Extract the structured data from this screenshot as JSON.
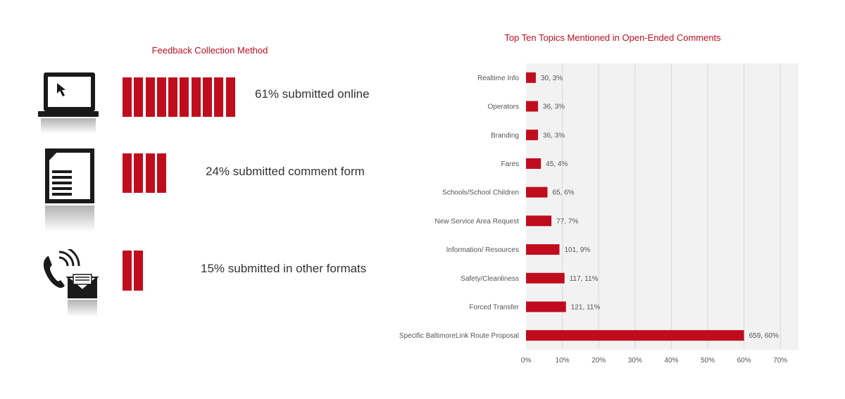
{
  "left_panel": {
    "title": "Feedback Collection Method",
    "rows": [
      {
        "icon": "laptop-icon",
        "percent": 61,
        "bar_count": 10,
        "label": "61% submitted online"
      },
      {
        "icon": "document-icon",
        "percent": 24,
        "bar_count": 4,
        "label": "24% submitted comment form"
      },
      {
        "icon": "phone-mail-icon",
        "percent": 15,
        "bar_count": 2,
        "label": "15% submitted in other formats"
      }
    ]
  },
  "chart_data": {
    "type": "bar",
    "orientation": "horizontal",
    "title": "Top Ten Topics Mentioned in Open-Ended Comments",
    "categories": [
      "Realtime Info",
      "Operators",
      "Branding",
      "Fares",
      "Schools/School Children",
      "New Service Area Request",
      "Information/ Resources",
      "Safety/Cleanliness",
      "Forced Transfer",
      "Specific BaltimoreLink Route Proposal"
    ],
    "counts": [
      30,
      36,
      36,
      45,
      65,
      77,
      101,
      117,
      121,
      659
    ],
    "values": [
      0.027,
      0.033,
      0.033,
      0.041,
      0.059,
      0.07,
      0.092,
      0.106,
      0.11,
      0.6
    ],
    "data_labels": [
      "30, 3%",
      "36, 3%",
      "36, 3%",
      "45, 4%",
      "65, 6%",
      "77, 7%",
      "101, 9%",
      "117, 11%",
      "121, 11%",
      "659, 60%"
    ],
    "x_ticks": [
      "0%",
      "10%",
      "20%",
      "30%",
      "40%",
      "50%",
      "60%",
      "70%"
    ],
    "xlim": [
      0,
      0.75
    ],
    "grid": true,
    "colors": {
      "bar": "#c00d1e",
      "plot_bg": "#f2f2f2",
      "grid": "#d9d9d9"
    }
  }
}
